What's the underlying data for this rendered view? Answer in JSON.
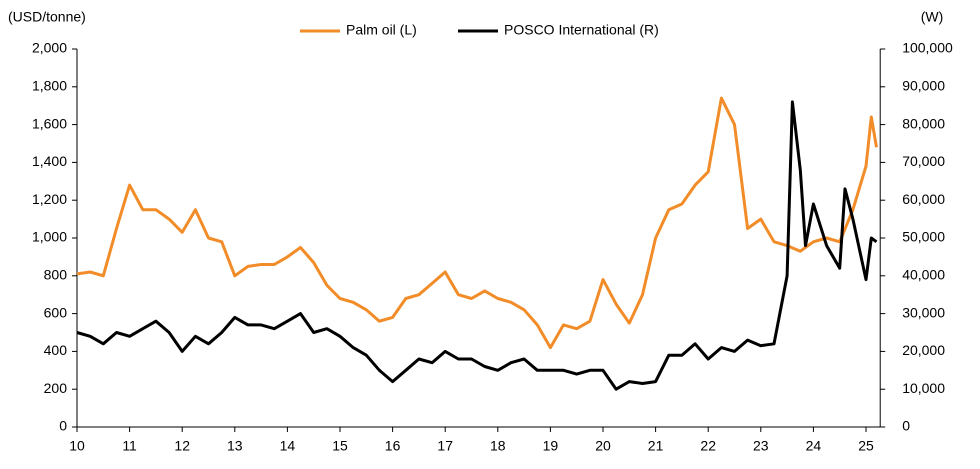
{
  "chart_data": {
    "type": "line",
    "y_label": "(USD/tonne)",
    "y2_label": "(W)",
    "xlim": [
      10,
      25.27
    ],
    "xticks": [
      10,
      11,
      12,
      13,
      14,
      15,
      16,
      17,
      18,
      19,
      20,
      21,
      22,
      23,
      24,
      25
    ],
    "ylim": [
      0,
      2000
    ],
    "yticks": [
      0,
      200,
      400,
      600,
      800,
      {
        "value": 1000,
        "label": "1,000"
      },
      {
        "value": 1200,
        "label": "1,200"
      },
      {
        "value": 1400,
        "label": "1,400"
      },
      {
        "value": 1600,
        "label": "1,600"
      },
      {
        "value": 1800,
        "label": "1,800"
      },
      {
        "value": 2000,
        "label": "2,000"
      }
    ],
    "y2lim": [
      0,
      100000
    ],
    "y2ticks": [
      0,
      {
        "value": 10000,
        "label": "10,000"
      },
      {
        "value": 20000,
        "label": "20,000"
      },
      {
        "value": 30000,
        "label": "30,000"
      },
      {
        "value": 40000,
        "label": "40,000"
      },
      {
        "value": 50000,
        "label": "50,000"
      },
      {
        "value": 60000,
        "label": "60,000"
      },
      {
        "value": 70000,
        "label": "70,000"
      },
      {
        "value": 80000,
        "label": "80,000"
      },
      {
        "value": 90000,
        "label": "90,000"
      },
      {
        "value": 100000,
        "label": "100,000"
      }
    ],
    "series": [
      {
        "name": "Palm oil (L)",
        "color": "#f28c28",
        "x": [
          10,
          10.25,
          10.5,
          10.75,
          11,
          11.25,
          11.5,
          11.75,
          12,
          12.25,
          12.5,
          12.75,
          13,
          13.25,
          13.5,
          13.75,
          14,
          14.25,
          14.5,
          14.75,
          15,
          15.25,
          15.5,
          15.75,
          16,
          16.25,
          16.5,
          16.75,
          17,
          17.25,
          17.5,
          17.75,
          18,
          18.25,
          18.5,
          18.75,
          19,
          19.25,
          19.5,
          19.75,
          20,
          20.25,
          20.5,
          20.75,
          21,
          21.25,
          21.5,
          21.75,
          22,
          22.25,
          22.5,
          22.75,
          23,
          23.25,
          23.5,
          23.75,
          24,
          24.25,
          24.5,
          24.75,
          25,
          25.1,
          25.2
        ],
        "values": [
          810,
          820,
          800,
          1050,
          1280,
          1150,
          1150,
          1100,
          1030,
          1150,
          1000,
          980,
          800,
          850,
          860,
          860,
          900,
          950,
          870,
          750,
          680,
          660,
          620,
          560,
          580,
          680,
          700,
          760,
          820,
          700,
          680,
          720,
          680,
          660,
          620,
          540,
          420,
          540,
          520,
          560,
          780,
          650,
          550,
          700,
          1000,
          1150,
          1180,
          1280,
          1350,
          1740,
          1600,
          1050,
          1100,
          980,
          960,
          930,
          980,
          1000,
          980,
          1150,
          1380,
          1640,
          1480
        ]
      },
      {
        "name": "POSCO International (R)",
        "color": "#000000",
        "axis": "y2",
        "x": [
          10,
          10.25,
          10.5,
          10.75,
          11,
          11.25,
          11.5,
          11.75,
          12,
          12.25,
          12.5,
          12.75,
          13,
          13.25,
          13.5,
          13.75,
          14,
          14.25,
          14.5,
          14.75,
          15,
          15.25,
          15.5,
          15.75,
          16,
          16.25,
          16.5,
          16.75,
          17,
          17.25,
          17.5,
          17.75,
          18,
          18.25,
          18.5,
          18.75,
          19,
          19.25,
          19.5,
          19.75,
          20,
          20.25,
          20.5,
          20.75,
          21,
          21.25,
          21.5,
          21.75,
          22,
          22.25,
          22.5,
          22.75,
          23,
          23.25,
          23.5,
          23.6,
          23.75,
          23.85,
          24,
          24.25,
          24.5,
          24.6,
          24.75,
          25,
          25.1,
          25.2
        ],
        "values": [
          25000,
          24000,
          22000,
          25000,
          24000,
          26000,
          28000,
          25000,
          20000,
          24000,
          22000,
          25000,
          29000,
          27000,
          27000,
          26000,
          28000,
          30000,
          25000,
          26000,
          24000,
          21000,
          19000,
          15000,
          12000,
          15000,
          18000,
          17000,
          20000,
          18000,
          18000,
          16000,
          15000,
          17000,
          18000,
          15000,
          15000,
          15000,
          14000,
          15000,
          15000,
          10000,
          12000,
          11500,
          12000,
          19000,
          19000,
          22000,
          18000,
          21000,
          20000,
          23000,
          21500,
          22000,
          40000,
          86000,
          68000,
          48000,
          59000,
          48000,
          42000,
          63000,
          55000,
          39000,
          50000,
          49000
        ]
      }
    ]
  }
}
